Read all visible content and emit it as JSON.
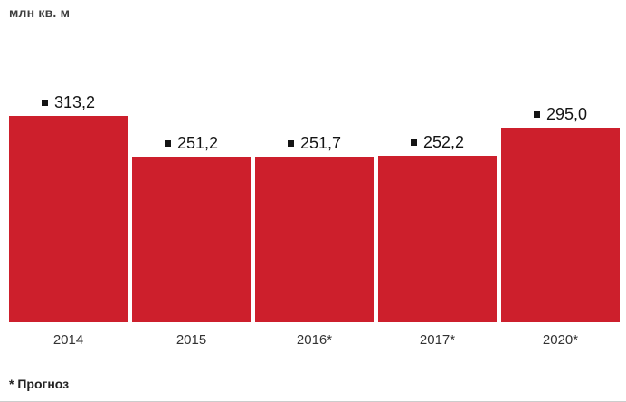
{
  "unit_label": "млн кв. м",
  "footnote": "* Прогноз",
  "colors": {
    "bar": "#cd1f2c",
    "marker": "#141414"
  },
  "chart_data": {
    "type": "bar",
    "title": "",
    "xlabel": "",
    "ylabel": "млн кв. м",
    "categories": [
      "2014",
      "2015",
      "2016*",
      "2017*",
      "2020*"
    ],
    "values": [
      313.2,
      251.2,
      251.7,
      252.2,
      295.0
    ],
    "value_labels": [
      "313,2",
      "251,2",
      "251,7",
      "252,2",
      "295,0"
    ],
    "ylim": [
      0,
      330
    ],
    "grid": false,
    "legend": "none",
    "footnote": "* Прогноз"
  }
}
